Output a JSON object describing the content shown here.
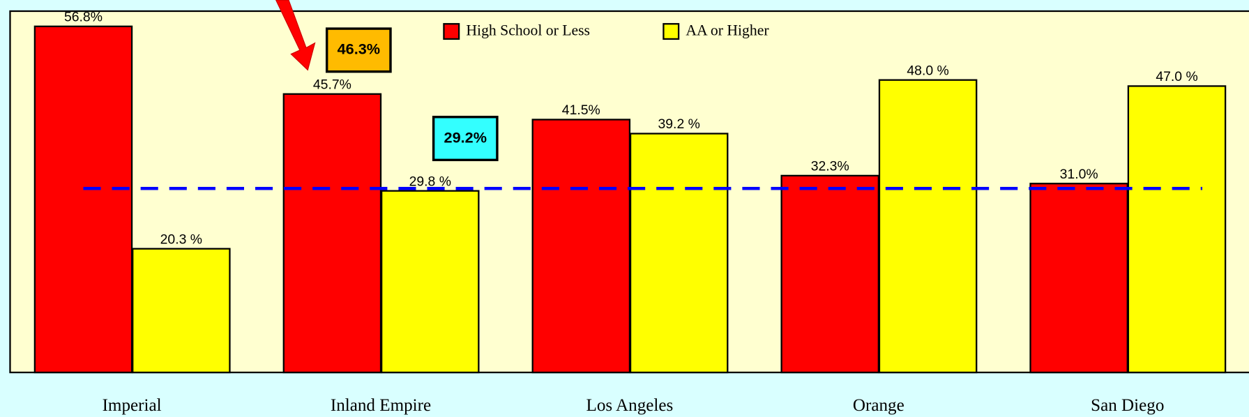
{
  "chart_data": {
    "type": "bar",
    "categories": [
      "Imperial",
      "Inland Empire",
      "Los Angeles",
      "Orange",
      "San Diego"
    ],
    "series": [
      {
        "name": "High School or Less",
        "color": "#ff0000",
        "values": [
          56.8,
          45.7,
          41.5,
          32.3,
          31.0
        ],
        "value_labels": [
          "56.8%",
          "45.7%",
          "41.5%",
          "32.3%",
          "31.0%"
        ]
      },
      {
        "name": "AA or Higher",
        "color": "#ffff00",
        "values": [
          20.3,
          29.8,
          39.2,
          48.0,
          47.0
        ],
        "value_labels": [
          "20.3 %",
          "29.8 %",
          "39.2 %",
          "48.0 %",
          "47.0 %"
        ]
      }
    ],
    "ylim": [
      0,
      59.3
    ],
    "reference_line": 30.2,
    "annotations": [
      {
        "text": "46.3%",
        "color": "#ffbb00"
      },
      {
        "text": "29.2%",
        "color": "#33ffff"
      }
    ]
  }
}
